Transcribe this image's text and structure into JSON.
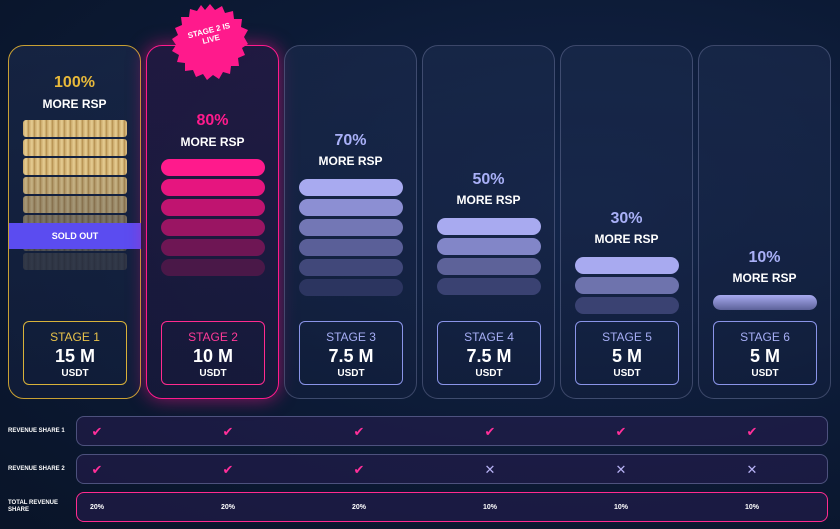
{
  "badge": {
    "text_line1": "STAGE 2 IS",
    "text_line2": "LIVE"
  },
  "stages": [
    {
      "percent": "100%",
      "more": "MORE RSP",
      "label": "STAGE 1",
      "amount": "15 M",
      "currency": "USDT",
      "status": "SOLD OUT"
    },
    {
      "percent": "80%",
      "more": "MORE RSP",
      "label": "STAGE 2",
      "amount": "10 M",
      "currency": "USDT"
    },
    {
      "percent": "70%",
      "more": "MORE RSP",
      "label": "STAGE 3",
      "amount": "7.5 M",
      "currency": "USDT"
    },
    {
      "percent": "50%",
      "more": "MORE RSP",
      "label": "STAGE 4",
      "amount": "7.5 M",
      "currency": "USDT"
    },
    {
      "percent": "30%",
      "more": "MORE RSP",
      "label": "STAGE 5",
      "amount": "5 M",
      "currency": "USDT"
    },
    {
      "percent": "10%",
      "more": "MORE RSP",
      "label": "STAGE 6",
      "amount": "5 M",
      "currency": "USDT"
    }
  ],
  "rows": [
    {
      "label": "REVENUE SHARE 1",
      "values": [
        "check",
        "check",
        "check",
        "check",
        "check",
        "check"
      ]
    },
    {
      "label": "REVENUE SHARE 2",
      "values": [
        "check",
        "check",
        "check",
        "cross",
        "cross",
        "cross"
      ]
    },
    {
      "label": "TOTAL REVENUE SHARE",
      "values": [
        "20%",
        "20%",
        "20%",
        "10%",
        "10%",
        "10%"
      ]
    }
  ],
  "colors": {
    "gold": "#e8b93a",
    "pink": "#ff1a8c",
    "lavender": "#a9b0f7",
    "sold_out_bg": "#5b4cf0"
  }
}
